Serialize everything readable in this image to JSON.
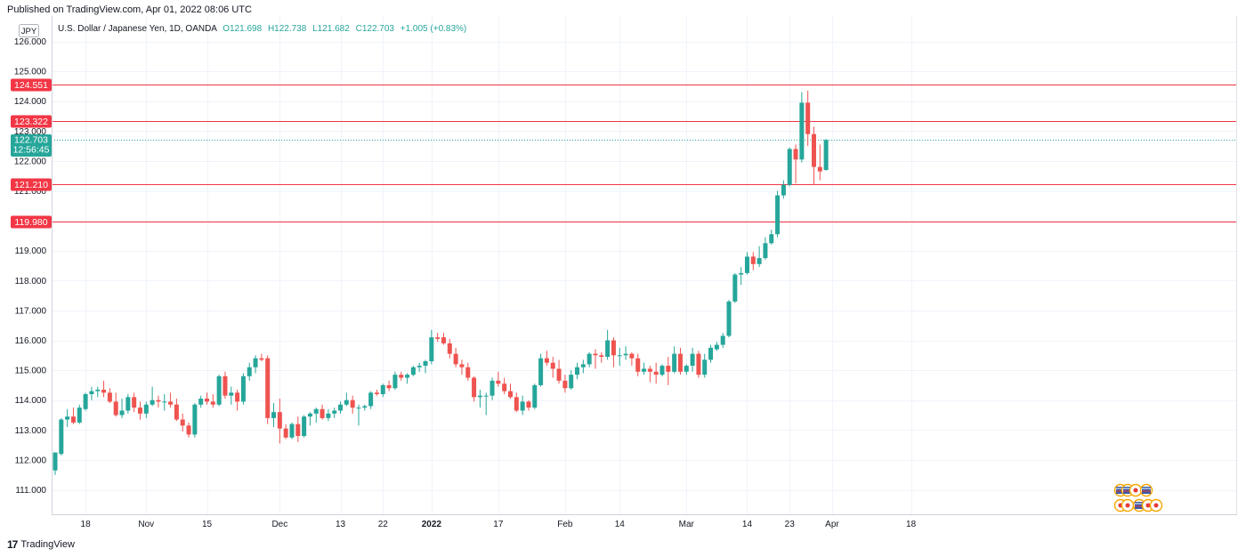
{
  "header": {
    "published": "Published on TradingView.com, Apr 01, 2022 08:06 UTC"
  },
  "legend": {
    "symbol": "U.S. Dollar / Japanese Yen, 1D, OANDA",
    "open": "O121.698",
    "high": "H122.738",
    "low": "L121.682",
    "close": "C122.703",
    "change": "+1.005 (+0.83%)"
  },
  "currency_badge": "JPY",
  "footer": {
    "brand": "TradingView"
  },
  "colors": {
    "up": "#26a69a",
    "down": "#ef5350",
    "level_line": "#f23645",
    "grid": "#f0f3fa",
    "axis_text": "#131722"
  },
  "icons": [
    "us-flag-event-icon",
    "jp-flag-event-icon"
  ],
  "chart_data": {
    "type": "candlestick",
    "title": "U.S. Dollar / Japanese Yen, 1D, OANDA",
    "ylim": [
      110.1,
      126.4
    ],
    "y_ticks": [
      111,
      112,
      113,
      114,
      115,
      116,
      117,
      118,
      119,
      120,
      121,
      122,
      123,
      124,
      125,
      126
    ],
    "y_tick_labels": [
      "111.000",
      "112.000",
      "113.000",
      "114.000",
      "115.000",
      "116.000",
      "117.000",
      "118.000",
      "119.000",
      "120.000",
      "121.000",
      "122.000",
      "123.000",
      "124.000",
      "125.000",
      "126.000"
    ],
    "x_ticks": [
      {
        "label": "18",
        "index": 5
      },
      {
        "label": "Nov",
        "index": 15
      },
      {
        "label": "15",
        "index": 25
      },
      {
        "label": "Dec",
        "index": 37
      },
      {
        "label": "13",
        "index": 47
      },
      {
        "label": "22",
        "index": 54
      },
      {
        "label": "2022",
        "index": 62,
        "bold": true
      },
      {
        "label": "17",
        "index": 73
      },
      {
        "label": "Feb",
        "index": 84
      },
      {
        "label": "14",
        "index": 93
      },
      {
        "label": "Mar",
        "index": 104
      },
      {
        "label": "14",
        "index": 114
      },
      {
        "label": "23",
        "index": 121
      },
      {
        "label": "Apr",
        "index": 128
      },
      {
        "label": "18",
        "index": 141
      }
    ],
    "price_levels": [
      124.551,
      123.322,
      121.21,
      119.98
    ],
    "price_level_labels": [
      "124.551",
      "123.322",
      "121.210",
      "119.980"
    ],
    "last_price": 122.703,
    "last_price_label": "122.703",
    "countdown": "12:56:45",
    "candles": [
      [
        111.65,
        112.25,
        111.5,
        112.25
      ],
      [
        112.2,
        113.4,
        112.15,
        113.35
      ],
      [
        113.35,
        113.7,
        113.1,
        113.45
      ],
      [
        113.45,
        113.75,
        113.2,
        113.25
      ],
      [
        113.25,
        113.85,
        113.2,
        113.75
      ],
      [
        113.7,
        114.25,
        113.65,
        114.2
      ],
      [
        114.2,
        114.45,
        114.0,
        114.3
      ],
      [
        114.3,
        114.45,
        114.1,
        114.35
      ],
      [
        114.35,
        114.65,
        114.1,
        114.25
      ],
      [
        114.25,
        114.4,
        113.9,
        113.95
      ],
      [
        113.95,
        114.25,
        113.45,
        113.5
      ],
      [
        113.5,
        114.05,
        113.4,
        113.65
      ],
      [
        113.65,
        114.2,
        113.55,
        114.1
      ],
      [
        114.1,
        114.25,
        113.6,
        113.75
      ],
      [
        113.75,
        113.95,
        113.35,
        113.55
      ],
      [
        113.55,
        113.95,
        113.4,
        113.85
      ],
      [
        113.85,
        114.45,
        113.8,
        114.0
      ],
      [
        114.0,
        114.15,
        113.75,
        113.95
      ],
      [
        113.95,
        114.2,
        113.65,
        113.95
      ],
      [
        113.95,
        114.25,
        113.75,
        113.85
      ],
      [
        113.85,
        114.05,
        113.3,
        113.35
      ],
      [
        113.35,
        113.55,
        112.95,
        113.15
      ],
      [
        113.15,
        113.25,
        112.75,
        112.85
      ],
      [
        112.85,
        113.9,
        112.75,
        113.85
      ],
      [
        113.85,
        114.15,
        113.75,
        114.05
      ],
      [
        114.05,
        114.25,
        113.85,
        113.95
      ],
      [
        113.95,
        114.2,
        113.75,
        113.85
      ],
      [
        113.85,
        114.85,
        113.8,
        114.8
      ],
      [
        114.8,
        114.95,
        114.05,
        114.15
      ],
      [
        114.15,
        114.45,
        113.85,
        114.25
      ],
      [
        114.25,
        114.35,
        113.65,
        113.95
      ],
      [
        113.95,
        114.9,
        113.85,
        114.8
      ],
      [
        114.8,
        115.25,
        114.65,
        115.1
      ],
      [
        115.1,
        115.5,
        114.9,
        115.4
      ],
      [
        115.4,
        115.55,
        115.3,
        115.35
      ],
      [
        115.4,
        115.5,
        113.2,
        113.4
      ],
      [
        113.4,
        113.9,
        113.1,
        113.6
      ],
      [
        113.6,
        114.05,
        112.55,
        113.05
      ],
      [
        113.05,
        113.2,
        112.7,
        112.75
      ],
      [
        112.75,
        113.25,
        112.7,
        113.2
      ],
      [
        113.2,
        113.45,
        112.6,
        112.8
      ],
      [
        112.8,
        113.5,
        112.75,
        113.45
      ],
      [
        113.45,
        113.6,
        113.15,
        113.55
      ],
      [
        113.55,
        113.75,
        113.25,
        113.7
      ],
      [
        113.7,
        113.85,
        113.35,
        113.4
      ],
      [
        113.4,
        113.7,
        113.3,
        113.55
      ],
      [
        113.55,
        113.75,
        113.4,
        113.65
      ],
      [
        113.65,
        113.95,
        113.55,
        113.85
      ],
      [
        113.85,
        114.25,
        113.8,
        114.0
      ],
      [
        114.0,
        114.15,
        113.55,
        113.75
      ],
      [
        113.75,
        113.85,
        113.15,
        113.75
      ],
      [
        113.75,
        113.85,
        113.65,
        113.8
      ],
      [
        113.8,
        114.3,
        113.7,
        114.25
      ],
      [
        114.25,
        114.35,
        114.15,
        114.2
      ],
      [
        114.2,
        114.55,
        114.1,
        114.5
      ],
      [
        114.5,
        114.65,
        114.3,
        114.4
      ],
      [
        114.4,
        114.95,
        114.35,
        114.85
      ],
      [
        114.85,
        114.95,
        114.65,
        114.75
      ],
      [
        114.75,
        114.9,
        114.55,
        114.85
      ],
      [
        114.85,
        115.15,
        114.8,
        115.1
      ],
      [
        115.1,
        115.25,
        114.95,
        115.15
      ],
      [
        115.15,
        115.35,
        114.9,
        115.3
      ],
      [
        115.3,
        116.35,
        115.2,
        116.1
      ],
      [
        116.1,
        116.25,
        115.95,
        116.05
      ],
      [
        116.1,
        116.25,
        115.85,
        115.9
      ],
      [
        115.9,
        116.05,
        115.4,
        115.55
      ],
      [
        115.55,
        115.75,
        115.1,
        115.2
      ],
      [
        115.2,
        115.35,
        114.85,
        115.1
      ],
      [
        115.1,
        115.25,
        114.65,
        114.75
      ],
      [
        114.75,
        114.8,
        113.95,
        114.1
      ],
      [
        114.1,
        114.35,
        113.75,
        114.15
      ],
      [
        114.15,
        114.25,
        113.5,
        114.15
      ],
      [
        114.15,
        114.75,
        114.0,
        114.65
      ],
      [
        114.65,
        114.95,
        114.45,
        114.55
      ],
      [
        114.55,
        114.75,
        114.2,
        114.3
      ],
      [
        114.3,
        114.55,
        114.05,
        114.1
      ],
      [
        114.1,
        114.25,
        113.6,
        113.65
      ],
      [
        113.65,
        114.15,
        113.5,
        113.95
      ],
      [
        113.95,
        114.0,
        113.65,
        113.75
      ],
      [
        113.75,
        114.55,
        113.7,
        114.5
      ],
      [
        114.5,
        115.55,
        114.45,
        115.4
      ],
      [
        115.4,
        115.65,
        115.15,
        115.25
      ],
      [
        115.25,
        115.45,
        114.75,
        115.05
      ],
      [
        115.05,
        115.35,
        114.55,
        114.65
      ],
      [
        114.65,
        114.85,
        114.25,
        114.4
      ],
      [
        114.4,
        115.0,
        114.35,
        114.85
      ],
      [
        114.85,
        115.25,
        114.7,
        115.1
      ],
      [
        115.1,
        115.35,
        114.9,
        115.2
      ],
      [
        115.2,
        115.6,
        115.1,
        115.55
      ],
      [
        115.55,
        115.7,
        115.05,
        115.5
      ],
      [
        115.5,
        115.6,
        115.25,
        115.45
      ],
      [
        115.45,
        116.35,
        115.35,
        116.0
      ],
      [
        116.0,
        116.1,
        115.1,
        115.5
      ],
      [
        115.5,
        115.75,
        115.15,
        115.5
      ],
      [
        115.5,
        115.8,
        115.35,
        115.55
      ],
      [
        115.55,
        115.6,
        115.15,
        115.4
      ],
      [
        115.4,
        115.55,
        114.8,
        114.95
      ],
      [
        114.95,
        115.25,
        114.85,
        115.05
      ],
      [
        115.05,
        115.15,
        114.6,
        114.95
      ],
      [
        114.95,
        115.25,
        114.55,
        114.85
      ],
      [
        114.85,
        115.2,
        114.8,
        115.15
      ],
      [
        115.15,
        115.45,
        114.5,
        114.95
      ],
      [
        114.95,
        115.8,
        114.9,
        115.55
      ],
      [
        115.55,
        115.75,
        114.85,
        114.95
      ],
      [
        114.95,
        115.2,
        114.85,
        115.15
      ],
      [
        115.15,
        115.75,
        114.95,
        115.55
      ],
      [
        115.55,
        115.65,
        114.75,
        114.85
      ],
      [
        114.85,
        115.55,
        114.75,
        115.35
      ],
      [
        115.35,
        115.85,
        115.25,
        115.75
      ],
      [
        115.7,
        115.95,
        115.65,
        115.85
      ],
      [
        115.85,
        116.25,
        115.75,
        116.15
      ],
      [
        116.15,
        117.35,
        116.1,
        117.3
      ],
      [
        117.3,
        118.25,
        117.25,
        118.2
      ],
      [
        118.2,
        118.45,
        117.85,
        118.25
      ],
      [
        118.25,
        118.95,
        118.2,
        118.8
      ],
      [
        118.8,
        118.95,
        118.35,
        118.55
      ],
      [
        118.55,
        119.15,
        118.45,
        118.75
      ],
      [
        118.75,
        119.45,
        118.7,
        119.25
      ],
      [
        119.25,
        119.7,
        119.2,
        119.55
      ],
      [
        119.55,
        121.0,
        119.45,
        120.85
      ],
      [
        120.85,
        121.35,
        120.75,
        121.2
      ],
      [
        121.2,
        122.45,
        121.15,
        122.4
      ],
      [
        122.4,
        122.55,
        121.25,
        122.05
      ],
      [
        122.05,
        124.3,
        121.95,
        123.95
      ],
      [
        123.95,
        124.35,
        122.5,
        122.9
      ],
      [
        122.9,
        123.15,
        121.2,
        121.8
      ],
      [
        121.8,
        122.55,
        121.35,
        121.65
      ],
      [
        121.698,
        122.738,
        121.682,
        122.703
      ]
    ]
  }
}
